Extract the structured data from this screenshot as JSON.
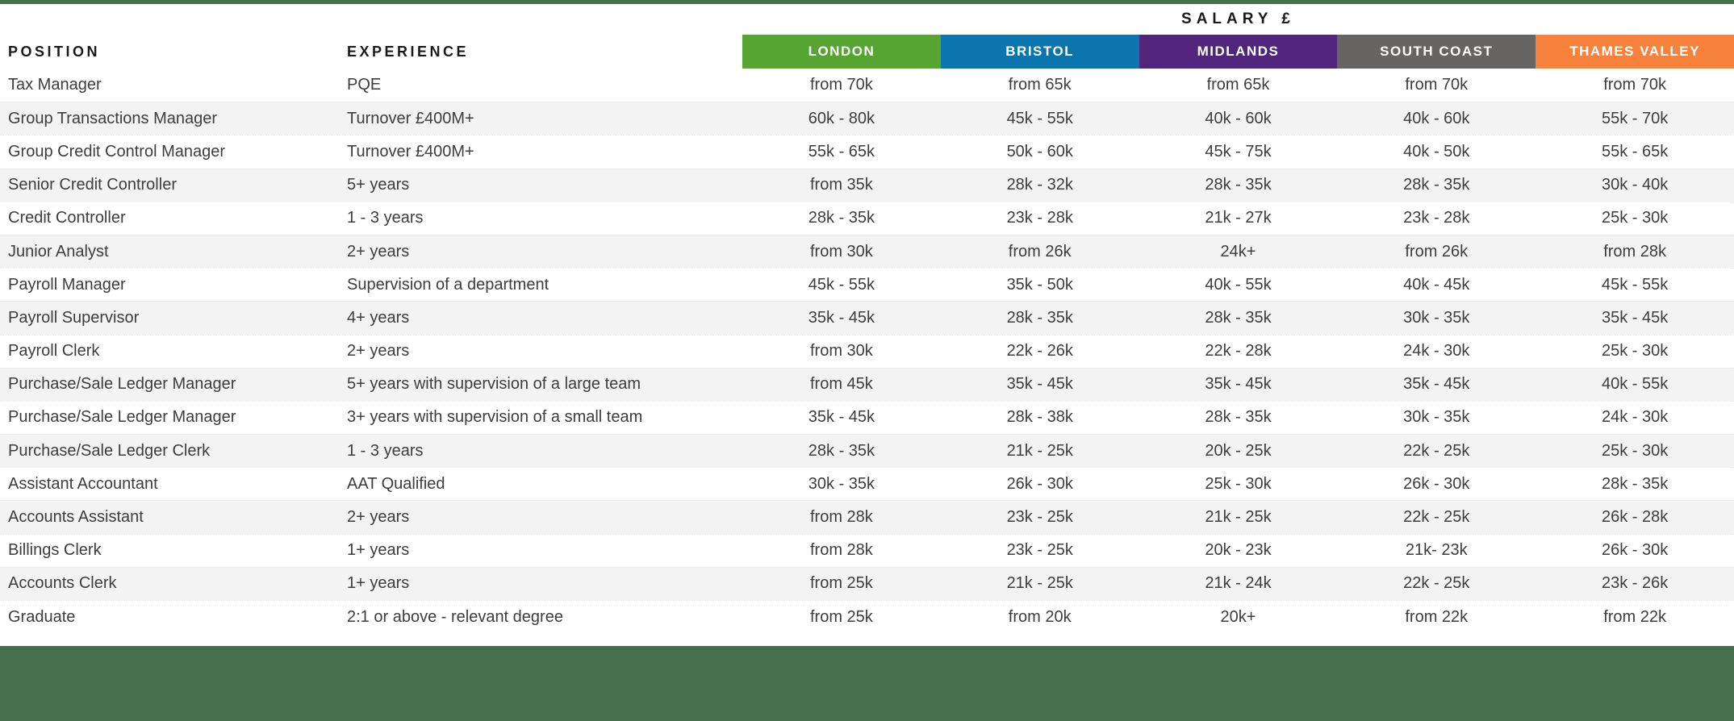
{
  "header": {
    "salary_title": "SALARY £",
    "position_label": "POSITION",
    "experience_label": "EXPERIENCE",
    "regions": [
      {
        "label": "LONDON",
        "color": "#57A433",
        "texture": "solid"
      },
      {
        "label": "BRISTOL",
        "color": "#0C75AD",
        "texture": "solid"
      },
      {
        "label": "MIDLANDS",
        "color": "#50257B",
        "texture": "solid"
      },
      {
        "label": "SOUTH COAST",
        "color": "#666564",
        "texture": "dots"
      },
      {
        "label": "THAMES VALLEY",
        "color": "#F6823E",
        "texture": "solid"
      }
    ]
  },
  "rows": [
    {
      "position": "Tax Manager",
      "experience": "PQE",
      "salaries": [
        "from 70k",
        "from 65k",
        "from 65k",
        "from 70k",
        "from 70k"
      ]
    },
    {
      "position": "Group Transactions Manager",
      "experience": "Turnover £400M+",
      "salaries": [
        "60k - 80k",
        "45k - 55k",
        "40k - 60k",
        "40k - 60k",
        "55k - 70k"
      ]
    },
    {
      "position": "Group Credit Control Manager",
      "experience": "Turnover £400M+",
      "salaries": [
        "55k - 65k",
        "50k - 60k",
        "45k - 75k",
        "40k - 50k",
        "55k - 65k"
      ]
    },
    {
      "position": "Senior Credit Controller",
      "experience": "5+ years",
      "salaries": [
        "from 35k",
        "28k - 32k",
        "28k - 35k",
        "28k - 35k",
        "30k - 40k"
      ]
    },
    {
      "position": "Credit Controller",
      "experience": "1 - 3 years",
      "salaries": [
        "28k - 35k",
        "23k - 28k",
        "21k - 27k",
        "23k - 28k",
        "25k - 30k"
      ]
    },
    {
      "position": "Junior Analyst",
      "experience": "2+ years",
      "salaries": [
        "from 30k",
        "from 26k",
        "24k+",
        "from 26k",
        "from 28k"
      ]
    },
    {
      "position": "Payroll Manager",
      "experience": "Supervision of a department",
      "salaries": [
        "45k - 55k",
        "35k - 50k",
        "40k - 55k",
        "40k - 45k",
        "45k - 55k"
      ]
    },
    {
      "position": "Payroll Supervisor",
      "experience": "4+ years",
      "salaries": [
        "35k - 45k",
        "28k - 35k",
        "28k - 35k",
        "30k - 35k",
        "35k - 45k"
      ]
    },
    {
      "position": "Payroll Clerk",
      "experience": "2+ years",
      "salaries": [
        "from 30k",
        "22k - 26k",
        "22k - 28k",
        "24k - 30k",
        "25k - 30k"
      ]
    },
    {
      "position": "Purchase/Sale Ledger Manager",
      "experience": "5+ years with supervision of a large team",
      "salaries": [
        "from 45k",
        "35k - 45k",
        "35k - 45k",
        "35k - 45k",
        "40k - 55k"
      ]
    },
    {
      "position": "Purchase/Sale Ledger Manager",
      "experience": "3+ years with supervision of a small team",
      "salaries": [
        "35k - 45k",
        "28k - 38k",
        "28k - 35k",
        "30k - 35k",
        "24k - 30k"
      ]
    },
    {
      "position": "Purchase/Sale Ledger Clerk",
      "experience": "1 - 3 years",
      "salaries": [
        "28k - 35k",
        "21k - 25k",
        "20k - 25k",
        "22k - 25k",
        "25k - 30k"
      ]
    },
    {
      "position": "Assistant Accountant",
      "experience": "AAT Qualified",
      "salaries": [
        "30k - 35k",
        "26k - 30k",
        "25k - 30k",
        "26k - 30k",
        "28k - 35k"
      ]
    },
    {
      "position": "Accounts Assistant",
      "experience": "2+ years",
      "salaries": [
        "from 28k",
        "23k - 25k",
        "21k - 25k",
        "22k - 25k",
        "26k - 28k"
      ]
    },
    {
      "position": "Billings Clerk",
      "experience": "1+ years",
      "salaries": [
        "from 28k",
        "23k - 25k",
        "20k - 23k",
        "21k- 23k",
        "26k - 30k"
      ]
    },
    {
      "position": "Accounts Clerk",
      "experience": "1+ years",
      "salaries": [
        "from 25k",
        "21k - 25k",
        "21k - 24k",
        "22k - 25k",
        "23k - 26k"
      ]
    },
    {
      "position": "Graduate",
      "experience": "2:1 or above - relevant degree",
      "salaries": [
        "from 25k",
        "from 20k",
        "20k+",
        "from 22k",
        "from 22k"
      ]
    }
  ],
  "theme": {
    "accent_green": "#466F4C",
    "stripe": "#F3F3F3"
  }
}
